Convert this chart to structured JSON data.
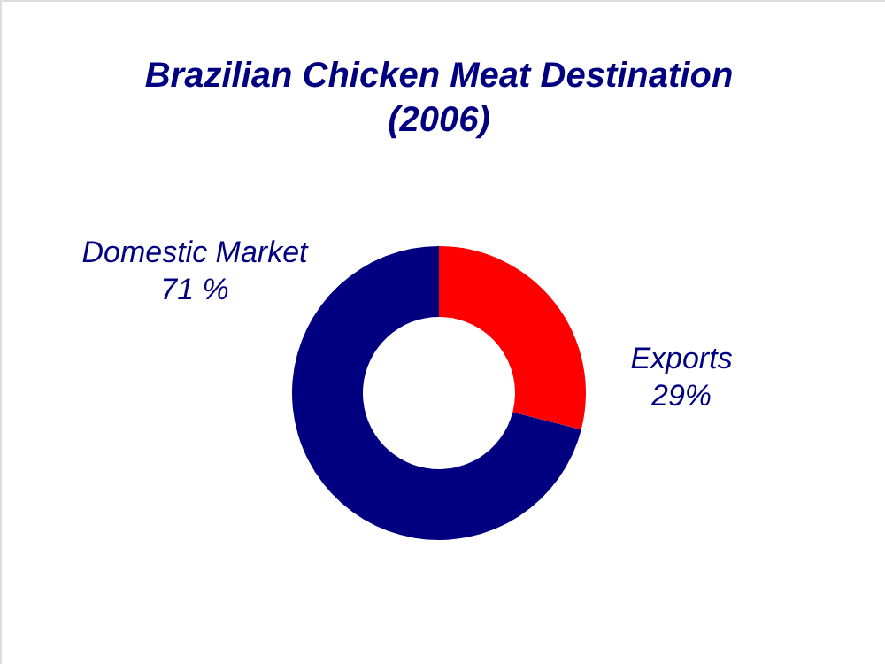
{
  "chart_data": {
    "type": "donut",
    "title": "Brazilian Chicken Meat Destination\n(2006)",
    "categories": [
      "Exports",
      "Domestic Market"
    ],
    "values": [
      29,
      71
    ],
    "value_labels": [
      "29%",
      "71 %"
    ],
    "colors": [
      "#ff0000",
      "#000080"
    ]
  }
}
